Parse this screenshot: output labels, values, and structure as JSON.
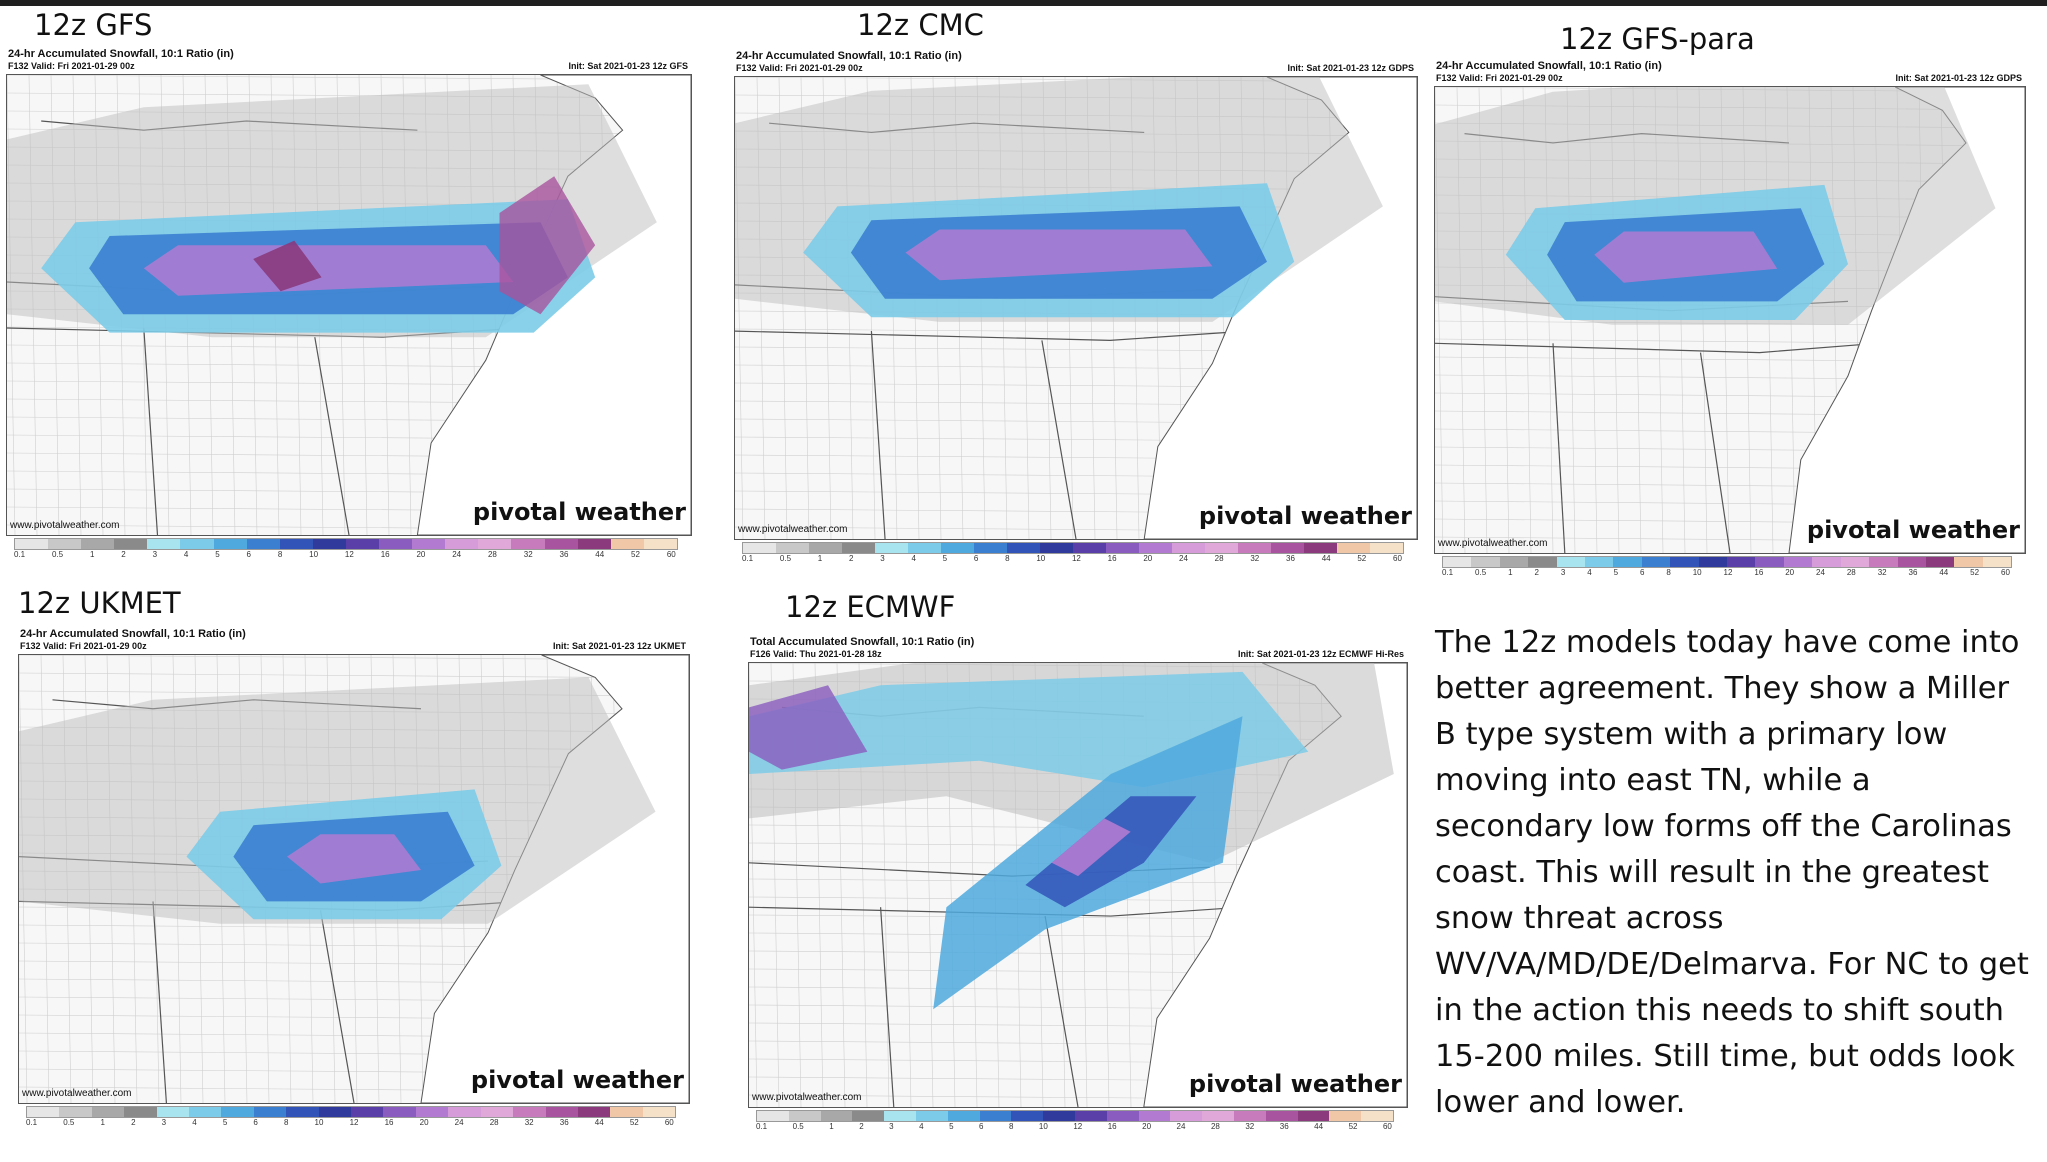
{
  "panels": [
    {
      "title": "12z GFS",
      "header": "24-hr Accumulated Snowfall, 10:1 Ratio (in)",
      "valid": "F132 Valid: Fri 2021-01-29 00z",
      "init": "Init: Sat 2021-01-23 12z GFS"
    },
    {
      "title": "12z CMC",
      "header": "24-hr Accumulated Snowfall, 10:1 Ratio (in)",
      "valid": "F132 Valid: Fri 2021-01-29 00z",
      "init": "Init: Sat 2021-01-23 12z GDPS"
    },
    {
      "title": "12z GFS-para",
      "header": "24-hr Accumulated Snowfall, 10:1 Ratio (in)",
      "valid": "F132 Valid: Fri 2021-01-29 00z",
      "init": "Init: Sat 2021-01-23 12z GDPS"
    },
    {
      "title": "12z UKMET",
      "header": "24-hr Accumulated Snowfall, 10:1 Ratio (in)",
      "valid": "F132 Valid: Fri 2021-01-29 00z",
      "init": "Init: Sat 2021-01-23 12z UKMET"
    },
    {
      "title": "12z ECMWF",
      "header": "Total Accumulated Snowfall, 10:1 Ratio (in)",
      "valid": "F126 Valid: Thu 2021-01-28 18z",
      "init": "Init: Sat 2021-01-23 12z ECMWF Hi-Res"
    }
  ],
  "brand": "pivotal weather",
  "url": "www.pivotalweather.com",
  "colorbar_ticks": [
    "0.1",
    "0.5",
    "1",
    "2",
    "3",
    "4",
    "5",
    "6",
    "8",
    "10",
    "12",
    "16",
    "20",
    "24",
    "28",
    "32",
    "36",
    "44",
    "52",
    "60"
  ],
  "colorbar_colors": [
    "#e6e6e6",
    "#c8c8c8",
    "#a8a8a8",
    "#8a8a8a",
    "#a8e4f0",
    "#7ccbe8",
    "#4fa9de",
    "#3a7fd0",
    "#3254b8",
    "#2f3a9c",
    "#5a3fa8",
    "#8a5cbf",
    "#b27bd1",
    "#d69bd9",
    "#e0a8d8",
    "#c77bbd",
    "#a8549e",
    "#8a3a7d",
    "#f0c8a8",
    "#f5e0c8"
  ],
  "description": "The 12z models today have come into better agreement. They show a Miller B type system with a primary low moving into east TN, while a secondary low forms off the Carolinas coast. This will result in the greatest snow threat across WV/VA/MD/DE/Delmarva. For NC to get in the action this needs to shift south 15-200 miles. Still time, but odds look lower and lower."
}
